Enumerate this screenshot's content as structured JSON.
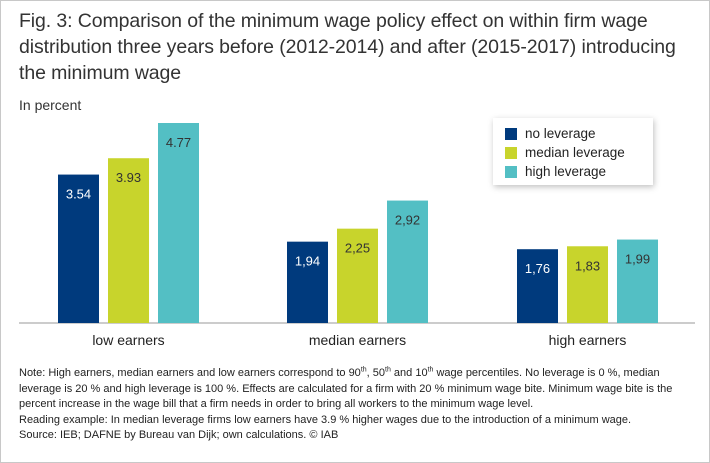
{
  "title": "Fig. 3: Comparison of the minimum wage policy effect on within firm wage distribution three years before (2012-2014) and after (2015-2017) introducing the minimum wage",
  "unit_label": "In percent",
  "colors": {
    "no_leverage": "#003a7d",
    "median_leverage": "#c8d42c",
    "high_leverage": "#53bfc4"
  },
  "chart_data": {
    "type": "bar",
    "title": "Fig. 3: Comparison of the minimum wage policy effect on within firm wage distribution three years before (2012-2014) and after (2015-2017) introducing the minimum wage",
    "ylabel": "In percent",
    "xlabel": "",
    "ylim": [
      0,
      4.77
    ],
    "grid": false,
    "legend_position": "top-right",
    "categories": [
      "low earners",
      "median earners",
      "high earners"
    ],
    "series": [
      {
        "name": "no leverage",
        "values": [
          3.54,
          1.94,
          1.76
        ],
        "labels": [
          "3.54",
          "1,94",
          "1,76"
        ]
      },
      {
        "name": "median leverage",
        "values": [
          3.93,
          2.25,
          1.83
        ],
        "labels": [
          "3.93",
          "2,25",
          "1,83"
        ]
      },
      {
        "name": "high leverage",
        "values": [
          4.77,
          2.92,
          1.99
        ],
        "labels": [
          "4.77",
          "2,92",
          "1,99"
        ]
      }
    ]
  },
  "notes": {
    "note_a": "Note: High earners, median earners and low earners correspond to 90",
    "sup_90": "th",
    "note_b": ", 50",
    "sup_50": "th",
    "note_c": " and 10",
    "sup_10": "th",
    "note_d": " wage percentiles. No leverage is 0 %, median leverage is 20 % and high leverage is 100 %. Effects are calculated for a firm with 20 % minimum wage bite. Minimum wage bite is the percent increase in the wage bill that a firm needs in order to bring all workers to the minimum wage level.",
    "reading_example": "Reading example: In median leverage firms low earners have 3.9 % higher wages due to the introduction of a minimum wage.",
    "source": "Source: IEB; DAFNE by Bureau van Dijk; own calculations.  © IAB"
  }
}
